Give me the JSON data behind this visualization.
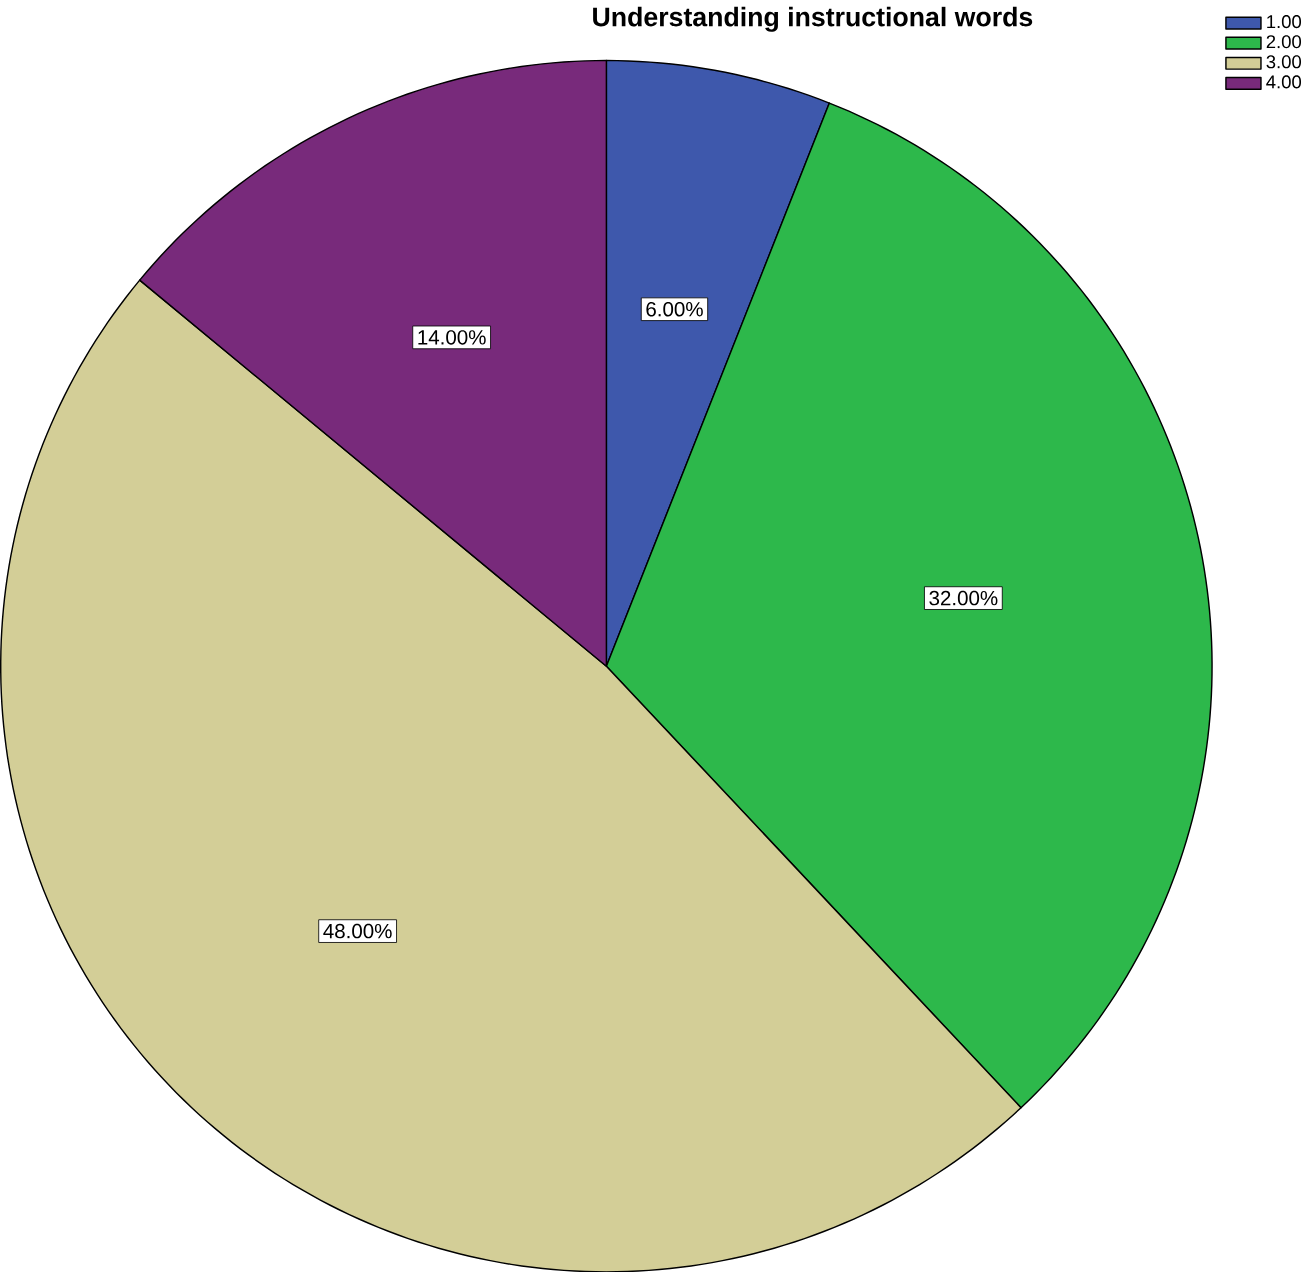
{
  "chart_data": {
    "type": "pie",
    "title": "Understanding instructional words",
    "categories": [
      "1.00",
      "2.00",
      "3.00",
      "4.00"
    ],
    "values": [
      6,
      32,
      48,
      14
    ],
    "colors": [
      "#3e58ac",
      "#2db84b",
      "#d3ce97",
      "#782a7b"
    ],
    "value_labels": [
      "6.00%",
      "32.00%",
      "48.00%",
      "14.00%"
    ],
    "legend": "top right"
  }
}
